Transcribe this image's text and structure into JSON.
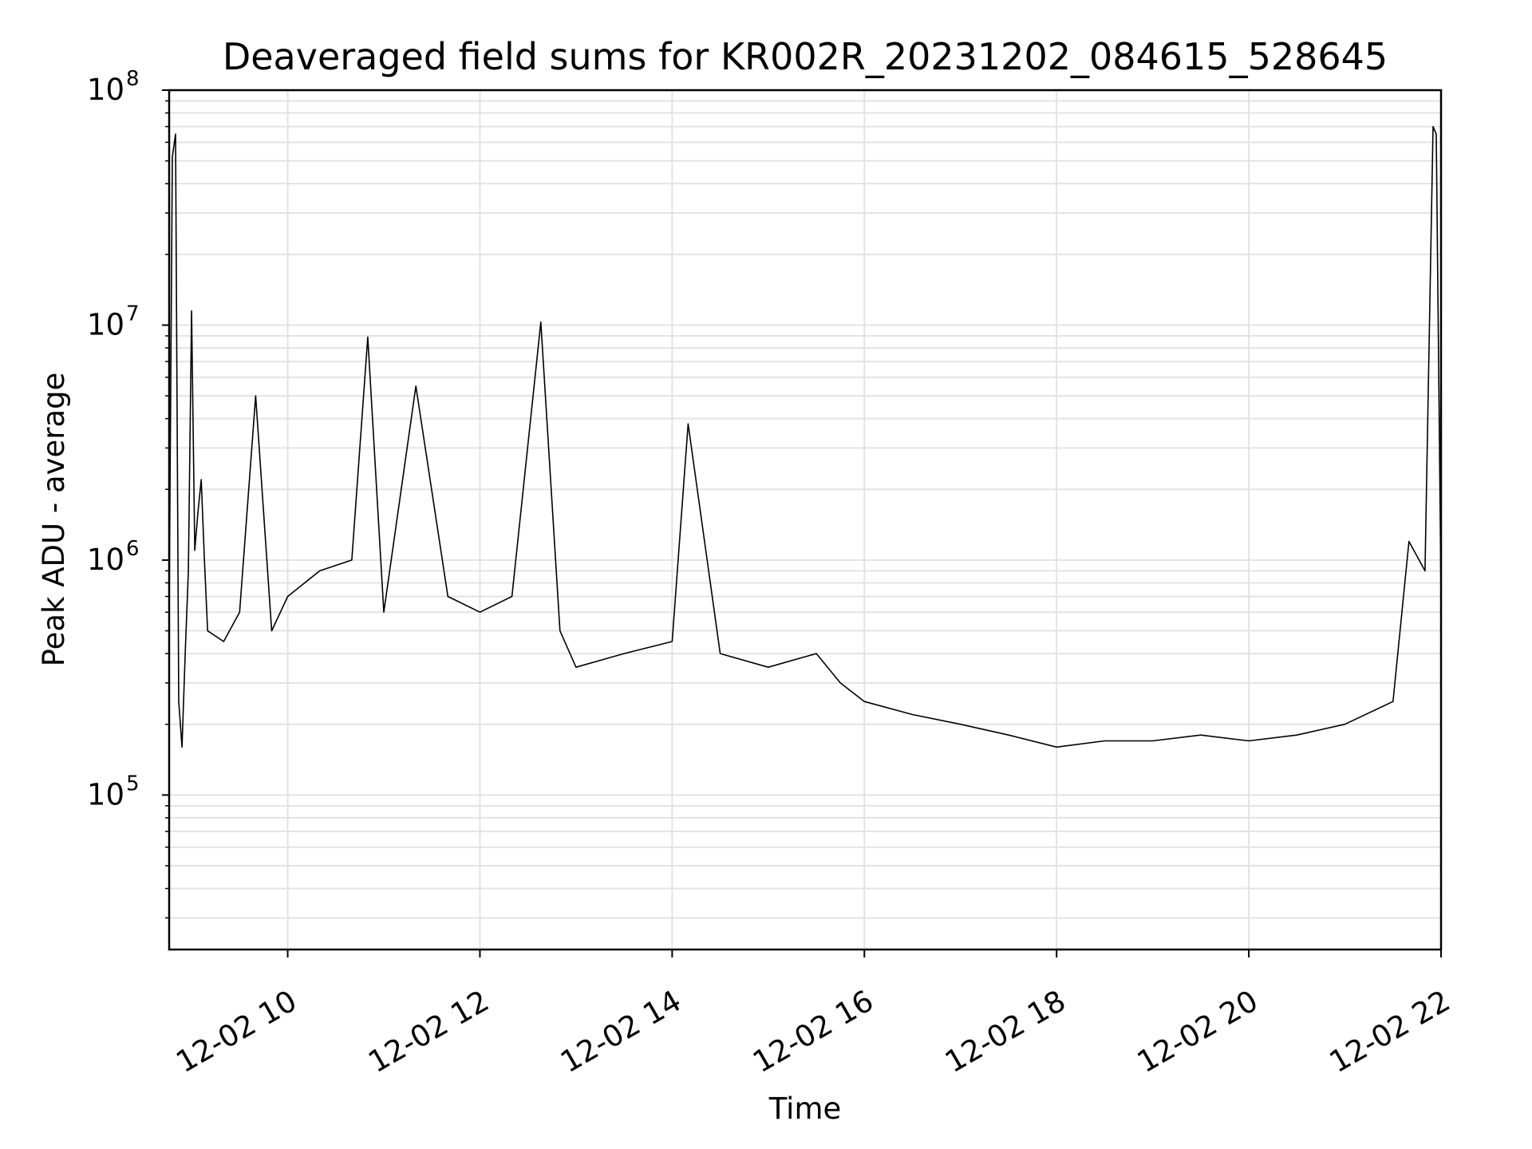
{
  "chart_data": {
    "type": "line",
    "title": "Deaveraged field sums for KR002R_20231202_084615_528645",
    "xlabel": "Time",
    "ylabel": "Peak ADU - average",
    "y_scale": "log",
    "ylim": [
      22000,
      100000000
    ],
    "xlim": [
      "2023-12-02 08:46",
      "2023-12-02 22:00"
    ],
    "grid": true,
    "series_color": "#000000",
    "x_ticks": [
      {
        "value": "2023-12-02 10:00",
        "label": "12-02 10"
      },
      {
        "value": "2023-12-02 12:00",
        "label": "12-02 12"
      },
      {
        "value": "2023-12-02 14:00",
        "label": "12-02 14"
      },
      {
        "value": "2023-12-02 16:00",
        "label": "12-02 16"
      },
      {
        "value": "2023-12-02 18:00",
        "label": "12-02 18"
      },
      {
        "value": "2023-12-02 20:00",
        "label": "12-02 20"
      },
      {
        "value": "2023-12-02 22:00",
        "label": "12-02 22"
      }
    ],
    "y_ticks": [
      {
        "value": 100000,
        "base": "10",
        "exp": "5"
      },
      {
        "value": 1000000,
        "base": "10",
        "exp": "6"
      },
      {
        "value": 10000000,
        "base": "10",
        "exp": "7"
      },
      {
        "value": 100000000,
        "base": "10",
        "exp": "8"
      }
    ],
    "series": [
      {
        "x": [
          "2023-12-02 08:46",
          "2023-12-02 08:48",
          "2023-12-02 08:50",
          "2023-12-02 08:52",
          "2023-12-02 08:54",
          "2023-12-02 08:56",
          "2023-12-02 08:58",
          "2023-12-02 09:00",
          "2023-12-02 09:02",
          "2023-12-02 09:04",
          "2023-12-02 09:06",
          "2023-12-02 09:08",
          "2023-12-02 09:10",
          "2023-12-02 09:20",
          "2023-12-02 09:30",
          "2023-12-02 09:40",
          "2023-12-02 09:50",
          "2023-12-02 10:00",
          "2023-12-02 10:20",
          "2023-12-02 10:40",
          "2023-12-02 10:50",
          "2023-12-02 11:00",
          "2023-12-02 11:20",
          "2023-12-02 11:40",
          "2023-12-02 12:00",
          "2023-12-02 12:20",
          "2023-12-02 12:38",
          "2023-12-02 12:50",
          "2023-12-02 13:00",
          "2023-12-02 13:30",
          "2023-12-02 14:00",
          "2023-12-02 14:10",
          "2023-12-02 14:30",
          "2023-12-02 15:00",
          "2023-12-02 15:30",
          "2023-12-02 15:45",
          "2023-12-02 16:00",
          "2023-12-02 16:30",
          "2023-12-02 17:00",
          "2023-12-02 17:30",
          "2023-12-02 18:00",
          "2023-12-02 18:30",
          "2023-12-02 19:00",
          "2023-12-02 19:30",
          "2023-12-02 20:00",
          "2023-12-02 20:30",
          "2023-12-02 21:00",
          "2023-12-02 21:30",
          "2023-12-02 21:40",
          "2023-12-02 21:50",
          "2023-12-02 21:55",
          "2023-12-02 21:57",
          "2023-12-02 22:00"
        ],
        "y": [
          600000,
          52000000,
          65000000,
          250000,
          160000,
          400000,
          900000,
          11500000,
          1100000,
          1600000,
          2200000,
          1000000,
          500000,
          450000,
          600000,
          5000000,
          500000,
          700000,
          900000,
          1000000,
          8900000,
          600000,
          5500000,
          700000,
          600000,
          700000,
          10300000,
          500000,
          350000,
          400000,
          450000,
          3800000,
          400000,
          350000,
          400000,
          300000,
          250000,
          220000,
          200000,
          180000,
          160000,
          170000,
          170000,
          180000,
          170000,
          180000,
          200000,
          250000,
          1200000,
          900000,
          70000000,
          65000000,
          700000
        ]
      }
    ]
  }
}
